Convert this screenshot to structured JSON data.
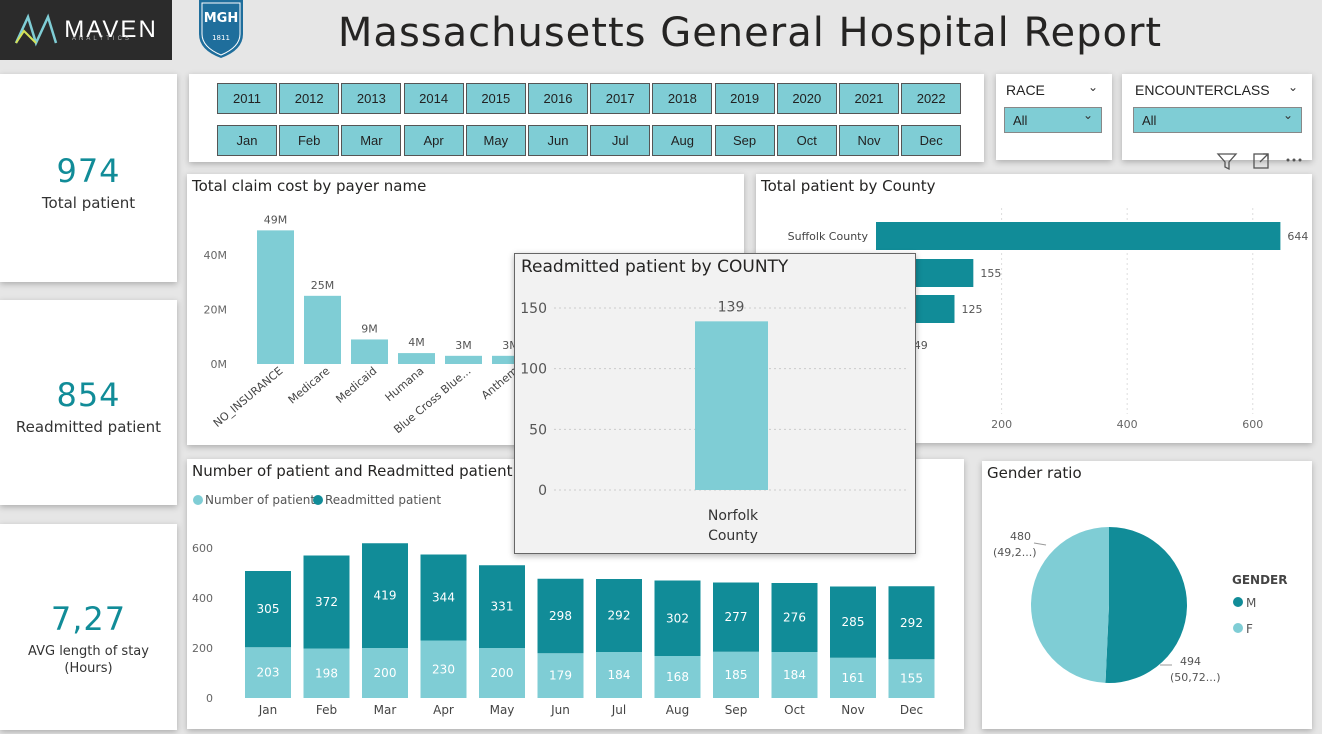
{
  "header": {
    "maven_logo": "MAVEN",
    "maven_sub": "ANALYTICS",
    "mgh_logo": "MGH",
    "mgh_year": "1811",
    "title": "Massachusetts General Hospital Report"
  },
  "kpis": [
    {
      "value": "974",
      "label": "Total patient"
    },
    {
      "value": "854",
      "label": "Readmitted patient"
    },
    {
      "value": "7,27",
      "label": "AVG length of stay",
      "label2": "(Hours)"
    }
  ],
  "slicers": {
    "years": [
      "2011",
      "2012",
      "2013",
      "2014",
      "2015",
      "2016",
      "2017",
      "2018",
      "2019",
      "2020",
      "2021",
      "2022"
    ],
    "months": [
      "Jan",
      "Feb",
      "Mar",
      "Apr",
      "May",
      "Jun",
      "Jul",
      "Aug",
      "Sep",
      "Oct",
      "Nov",
      "Dec"
    ],
    "race": {
      "title": "RACE",
      "value": "All"
    },
    "encounterclass": {
      "title": "ENCOUNTERCLASS",
      "value": "All"
    }
  },
  "colors": {
    "dark": "#118c98",
    "light": "#7fcdd5",
    "kpi": "#118c98"
  },
  "chart_data": [
    {
      "id": "claim",
      "type": "bar",
      "title": "Total claim cost by payer name",
      "categories": [
        "NO_INSURANCE",
        "Medicare",
        "Medicaid",
        "Humana",
        "Blue Cross Blue...",
        "Anthem"
      ],
      "values": [
        49,
        25,
        9,
        4,
        3,
        3
      ],
      "labels": [
        "49M",
        "25M",
        "9M",
        "4M",
        "3M",
        "3M"
      ],
      "yticks": [
        "0M",
        "20M",
        "40M"
      ],
      "ylim": [
        0,
        55
      ]
    },
    {
      "id": "county",
      "type": "bar",
      "orientation": "horizontal",
      "title": "Total patient by County",
      "categories": [
        "Suffolk County",
        "",
        "",
        ""
      ],
      "values": [
        644,
        155,
        125,
        49
      ],
      "labels": [
        "644",
        "155",
        "125",
        "49"
      ],
      "xticks": [
        "200",
        "400",
        "600"
      ],
      "xlim": [
        0,
        680
      ]
    },
    {
      "id": "monthly",
      "type": "bar",
      "stacked": true,
      "title": "Number of patient and Readmitted patient",
      "categories": [
        "Jan",
        "Feb",
        "Mar",
        "Apr",
        "May",
        "Jun",
        "Jul",
        "Aug",
        "Sep",
        "Oct",
        "Nov",
        "Dec"
      ],
      "series": [
        {
          "name": "Number of patient",
          "values": [
            203,
            198,
            200,
            230,
            200,
            179,
            184,
            168,
            185,
            184,
            161,
            155
          ]
        },
        {
          "name": "Readmitted patient",
          "values": [
            305,
            372,
            419,
            344,
            331,
            298,
            292,
            302,
            277,
            276,
            285,
            292
          ]
        }
      ],
      "yticks": [
        "0",
        "200",
        "400",
        "600"
      ],
      "ylim": [
        0,
        650
      ],
      "legend": "top-left"
    },
    {
      "id": "gender",
      "type": "pie",
      "title": "Gender ratio",
      "legend_title": "GENDER",
      "categories": [
        "M",
        "F"
      ],
      "values": [
        494,
        480
      ],
      "labels": [
        "494",
        "(50,72...)",
        "480",
        "(49,2...)"
      ]
    },
    {
      "id": "tooltip",
      "type": "bar",
      "title": "Readmitted patient by COUNTY",
      "categories": [
        "Norfolk",
        "County"
      ],
      "values": [
        139
      ],
      "labels": [
        "139"
      ],
      "yticks": [
        "0",
        "50",
        "100",
        "150"
      ],
      "ylim": [
        0,
        160
      ]
    }
  ]
}
